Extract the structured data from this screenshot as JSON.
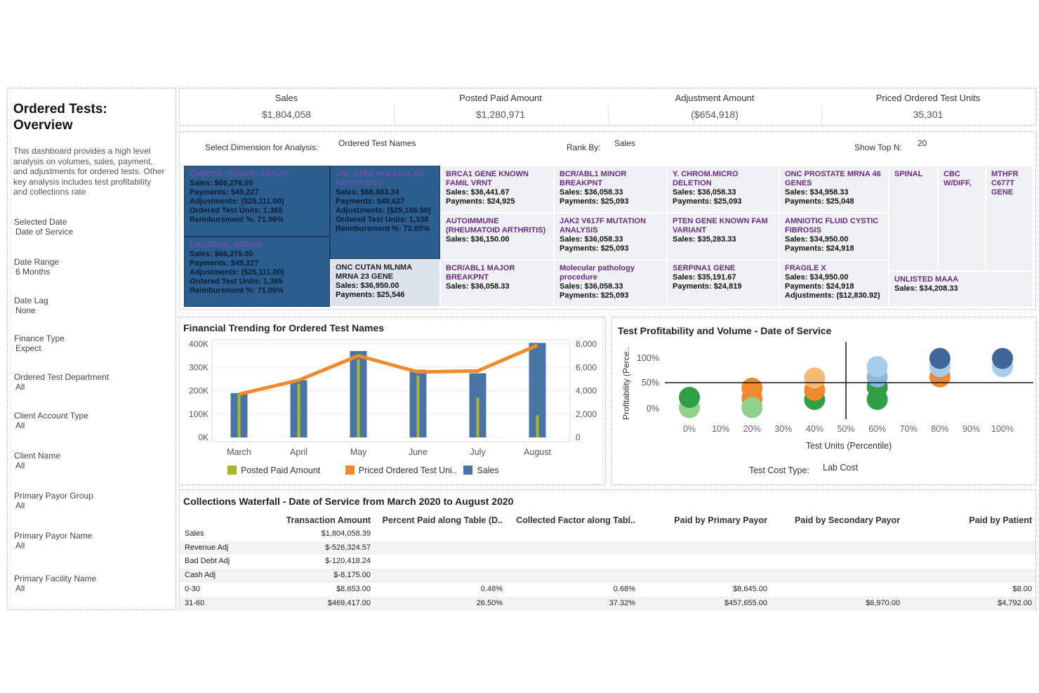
{
  "sidebar": {
    "title_line1": "Ordered Tests:",
    "title_line2": "Overview",
    "description": "This dashboard provides a high level analysis on volumes, sales, payment, and adjustments for ordered tests.  Other key analysis includes test profitability and collections rate",
    "filters": [
      {
        "label": "Selected Date",
        "value": "Date of Service"
      },
      {
        "label": "Date Range",
        "value": "6 Months"
      },
      {
        "label": "Date Lag",
        "value": "None"
      },
      {
        "label": "Finance Type",
        "value": "Expect"
      },
      {
        "label": "Ordered Test Department",
        "value": "All"
      },
      {
        "label": "Client Account Type",
        "value": "All"
      },
      {
        "label": "Client Name",
        "value": "All"
      },
      {
        "label": "Primary Payor Group",
        "value": "All"
      },
      {
        "label": "Primary Payor Name",
        "value": "All"
      },
      {
        "label": "Primary Facility Name",
        "value": "All"
      }
    ]
  },
  "kpis": [
    {
      "label": "Sales",
      "value": "$1,804,058"
    },
    {
      "label": "Posted Paid Amount",
      "value": "$1,280,971"
    },
    {
      "label": "Adjustment Amount",
      "value": "($654,918)"
    },
    {
      "label": "Priced Ordered Test Units",
      "value": "35,301"
    }
  ],
  "controls": {
    "dimension_label": "Select Dimension for Analysis:",
    "dimension_value": "Ordered Test Names",
    "rank_label": "Rank By:",
    "rank_value": "Sales",
    "topn_label": "Show Top N:",
    "topn_value": "20"
  },
  "treemap": [
    {
      "name": "CARBON DIOXIDE, SERUM",
      "lines": [
        "Sales: $69,276.00",
        "Payments: $49,227",
        "Adjustments: ($25,111.00)",
        "Ordered Test Units: 1,365",
        "Reimbursment %: 71.06%"
      ]
    },
    {
      "name": "CHLORIDE, SERUM",
      "lines": [
        "Sales: $69,275.00",
        "Payments: $49,227",
        "Adjustments: ($25,111.00)",
        "Ordered Test Units: 1,365",
        "Reimbursment %: 71.06%"
      ]
    },
    {
      "name": "UNLISTED MOLECULAR PATHOLOGY",
      "lines": [
        "Sales: $68,883.34",
        "Payments: $49,627",
        "Adjustments: ($25,166.50)",
        "Ordered Test Units: 1,338",
        "Reimbursment %: 72.05%"
      ]
    },
    {
      "name": "ONC CUTAN MLNMA MRNA 23 GENE",
      "lines": [
        "Sales: $36,950.00",
        "Payments: $25,546"
      ]
    },
    {
      "name": "BRCA1 GENE KNOWN FAMIL VRNT",
      "lines": [
        "Sales: $36,441.67",
        "Payments: $24,925"
      ]
    },
    {
      "name": "AUTOIMMUNE (RHEUMATOID ARTHRITIS)",
      "lines": [
        "Sales: $36,150.00"
      ]
    },
    {
      "name": "BCR/ABL1 MAJOR BREAKPNT",
      "lines": [
        "Sales: $36,058.33"
      ]
    },
    {
      "name": "BCR/ABL1 MINOR BREAKPNT",
      "lines": [
        "Sales: $36,058.33",
        "Payments: $25,093"
      ]
    },
    {
      "name": "JAK2 V617F MUTATION ANALYSIS",
      "lines": [
        "Sales: $36,058.33",
        "Payments: $25,093"
      ]
    },
    {
      "name": "Molecular pathology procedure",
      "lines": [
        "Sales: $36,058.33",
        "Payments: $25,093"
      ]
    },
    {
      "name": "Y. CHROM.MICRO DELETION",
      "lines": [
        "Sales: $36,058.33",
        "Payments: $25,093"
      ]
    },
    {
      "name": "PTEN GENE KNOWN FAM VARIANT",
      "lines": [
        "Sales: $35,283.33"
      ]
    },
    {
      "name": "SERPINA1 GENE",
      "lines": [
        "Sales: $35,191.67",
        "Payments: $24,819"
      ]
    },
    {
      "name": "ONC PROSTATE MRNA 46 GENES",
      "lines": [
        "Sales: $34,958.33",
        "Payments: $25,048"
      ]
    },
    {
      "name": "AMNIOTIC FLUID CYSTIC FIBROSIS",
      "lines": [
        "Sales: $34,950.00",
        "Payments: $24,918"
      ]
    },
    {
      "name": "FRAGILE X",
      "lines": [
        "Sales: $34,950.00",
        "Payments: $24,918",
        "Adjustments: ($12,830.92)"
      ]
    },
    {
      "name": "SPINAL",
      "lines": []
    },
    {
      "name": "CBC W/DIFF,",
      "lines": []
    },
    {
      "name": "MTHFR C677T GENE",
      "lines": []
    },
    {
      "name": "UNLISTED MAAA",
      "lines": [
        "Sales: $34,208.33"
      ]
    }
  ],
  "financial": {
    "title": "Financial Trending for Ordered Test Names",
    "legend": [
      "Posted Paid Amount",
      "Priced Ordered Test Uni..",
      "Sales"
    ],
    "colors": {
      "posted": "#a9b534",
      "units": "#ef8a2e",
      "sales": "#4a74a3"
    },
    "left_ticks": [
      "400K",
      "300K",
      "200K",
      "100K",
      "0K"
    ],
    "right_ticks": [
      "8,000",
      "6,000",
      "4,000",
      "2,000",
      "0"
    ]
  },
  "chart_data": [
    {
      "type": "bar",
      "categories": [
        "March",
        "April",
        "May",
        "June",
        "July",
        "August"
      ],
      "series": [
        {
          "name": "Sales",
          "values": [
            190000,
            245000,
            370000,
            290000,
            275000,
            405000
          ]
        },
        {
          "name": "Posted Paid Amount",
          "values": [
            185000,
            230000,
            335000,
            265000,
            170000,
            95000
          ]
        },
        {
          "name": "Priced Ordered Test Uni..",
          "values": [
            3700,
            4900,
            7000,
            5600,
            5700,
            7900
          ]
        }
      ],
      "ylim": [
        0,
        400000
      ],
      "y2lim": [
        0,
        8000
      ]
    },
    {
      "type": "scatter",
      "xlabel": "Test Units (Percentile)",
      "ylabel": "Profitability (Perce..",
      "xticks": [
        "0%",
        "10%",
        "20%",
        "30%",
        "40%",
        "50%",
        "60%",
        "70%",
        "80%",
        "90%",
        "100%"
      ],
      "yticks": [
        "100%",
        "50%",
        "0%"
      ],
      "points": [
        {
          "x": 0,
          "y": 0.02,
          "color": "#8fd08a"
        },
        {
          "x": 0,
          "y": 0.22,
          "color": "#2f9e44"
        },
        {
          "x": 0.2,
          "y": 0.2,
          "color": "#ef8a2e"
        },
        {
          "x": 0.2,
          "y": 0.4,
          "color": "#ef8a2e"
        },
        {
          "x": 0.2,
          "y": 0.02,
          "color": "#8fd08a"
        },
        {
          "x": 0.4,
          "y": 0.18,
          "color": "#2f9e44"
        },
        {
          "x": 0.4,
          "y": 0.36,
          "color": "#ef8a2e"
        },
        {
          "x": 0.4,
          "y": 0.6,
          "color": "#f5b979"
        },
        {
          "x": 0.6,
          "y": 0.18,
          "color": "#2f9e44"
        },
        {
          "x": 0.6,
          "y": 0.42,
          "color": "#2f9e44"
        },
        {
          "x": 0.6,
          "y": 0.62,
          "color": "#8ab8de"
        },
        {
          "x": 0.6,
          "y": 0.82,
          "color": "#a6cdea"
        },
        {
          "x": 0.8,
          "y": 0.62,
          "color": "#ef8a2e"
        },
        {
          "x": 0.8,
          "y": 0.82,
          "color": "#a6cdea"
        },
        {
          "x": 0.8,
          "y": 0.98,
          "color": "#3f6797"
        },
        {
          "x": 1.0,
          "y": 0.82,
          "color": "#a6cdea"
        },
        {
          "x": 1.0,
          "y": 0.98,
          "color": "#3f6797"
        }
      ]
    }
  ],
  "profitability": {
    "title": "Test Profitability and Volume - Date of Service",
    "cost_type_label": "Test Cost Type:",
    "cost_type_value": "Lab Cost"
  },
  "collections": {
    "title": "Collections Waterfall - Date of Service from March 2020 to August 2020",
    "headers": [
      "Transaction Amount",
      "Percent Paid along Table (D..",
      "Collected Factor along Tabl..",
      "Paid by Primary Payor",
      "Paid by Secondary Payor",
      "Paid by Patient"
    ],
    "rows": [
      {
        "label": "Sales",
        "amount": "$1,804,058.39",
        "pct": "",
        "factor": "",
        "primary": "",
        "secondary": "",
        "patient": ""
      },
      {
        "label": "Revenue Adj",
        "amount": "$-526,324.57",
        "pct": "",
        "factor": "",
        "primary": "",
        "secondary": "",
        "patient": ""
      },
      {
        "label": "Bad Debt Adj",
        "amount": "$-120,418.24",
        "pct": "",
        "factor": "",
        "primary": "",
        "secondary": "",
        "patient": ""
      },
      {
        "label": "Cash Adj",
        "amount": "$-8,175.00",
        "pct": "",
        "factor": "",
        "primary": "",
        "secondary": "",
        "patient": ""
      },
      {
        "label": "0-30",
        "amount": "$8,653.00",
        "pct": "0.48%",
        "factor": "0.68%",
        "primary": "$8,645.00",
        "secondary": "",
        "patient": "$8.00"
      },
      {
        "label": "31-60",
        "amount": "$469,417.00",
        "pct": "26.50%",
        "factor": "37.32%",
        "primary": "$457,655.00",
        "secondary": "$6,970.00",
        "patient": "$4,792.00"
      }
    ]
  }
}
